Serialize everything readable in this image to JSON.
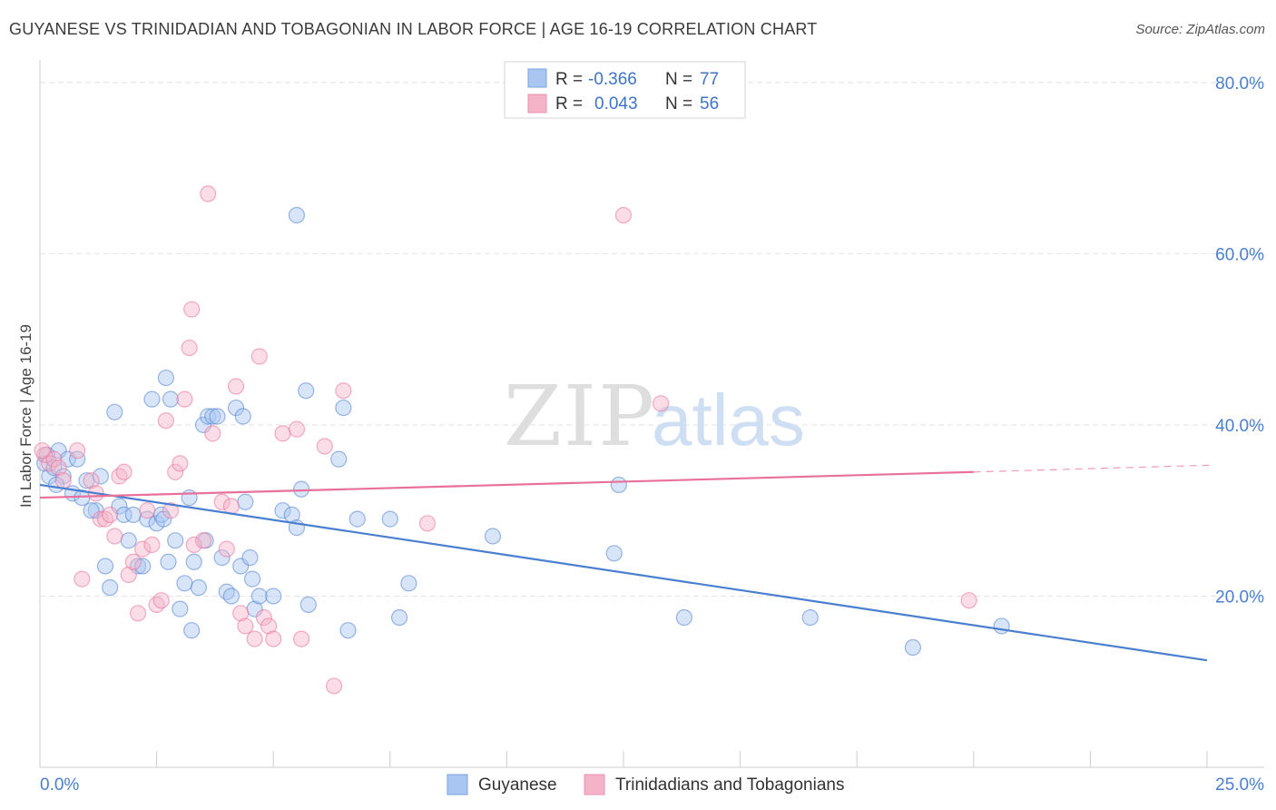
{
  "header": {
    "title": "GUYANESE VS TRINIDADIAN AND TOBAGONIAN IN LABOR FORCE | AGE 16-19 CORRELATION CHART",
    "source": "Source: ZipAtlas.com"
  },
  "watermark": {
    "zip": "ZIP",
    "atlas": "atlas"
  },
  "legend": {
    "rows": [
      {
        "r_label": "R = ",
        "r_value": "-0.366",
        "n_label": "N = ",
        "n_value": "77",
        "color": "#a9c6f2"
      },
      {
        "r_label": "R = ",
        "r_value": "0.043",
        "n_label": "N = ",
        "n_value": "56",
        "color": "#f5b3c8"
      }
    ]
  },
  "bottom_legend": [
    {
      "label": "Guyanese",
      "color": "#a9c6f2"
    },
    {
      "label": "Trinidadians and Tobagonians",
      "color": "#f5b3c8"
    }
  ],
  "chart_data": {
    "type": "scatter",
    "xlabel": "",
    "ylabel": "In Labor Force | Age 16-19",
    "xlim": [
      0,
      25
    ],
    "ylim": [
      0,
      82
    ],
    "x_tick_labels": [
      {
        "value": 0,
        "label": "0.0%"
      },
      {
        "value": 25,
        "label": "25.0%"
      }
    ],
    "y_tick_labels": [
      {
        "value": 20,
        "label": "20.0%"
      },
      {
        "value": 40,
        "label": "40.0%"
      },
      {
        "value": 60,
        "label": "60.0%"
      },
      {
        "value": 80,
        "label": "80.0%"
      }
    ],
    "grid": true,
    "series": [
      {
        "name": "Guyanese",
        "color": "#4a7fd0",
        "fill": "#a9c6f2",
        "trend": {
          "x": [
            0,
            25
          ],
          "y": [
            33.0,
            12.5
          ],
          "dashed_after": null
        },
        "points": [
          [
            0.1,
            35.5
          ],
          [
            0.2,
            34.0
          ],
          [
            0.3,
            35.0
          ],
          [
            0.4,
            37.0
          ],
          [
            0.5,
            34.0
          ],
          [
            0.6,
            36.0
          ],
          [
            0.7,
            32.0
          ],
          [
            0.8,
            36.0
          ],
          [
            1.0,
            33.5
          ],
          [
            1.2,
            30.0
          ],
          [
            1.3,
            34.0
          ],
          [
            1.4,
            23.5
          ],
          [
            1.5,
            21.0
          ],
          [
            1.6,
            41.5
          ],
          [
            1.7,
            30.5
          ],
          [
            1.8,
            29.5
          ],
          [
            1.9,
            26.5
          ],
          [
            2.0,
            29.5
          ],
          [
            2.1,
            23.5
          ],
          [
            2.2,
            23.5
          ],
          [
            2.3,
            29.0
          ],
          [
            2.4,
            43.0
          ],
          [
            2.5,
            28.5
          ],
          [
            2.6,
            29.5
          ],
          [
            2.7,
            45.5
          ],
          [
            2.75,
            24.0
          ],
          [
            2.8,
            43.0
          ],
          [
            2.9,
            26.5
          ],
          [
            3.0,
            18.5
          ],
          [
            3.1,
            21.5
          ],
          [
            3.2,
            31.5
          ],
          [
            3.25,
            16.0
          ],
          [
            3.3,
            24.0
          ],
          [
            3.4,
            21.0
          ],
          [
            3.5,
            40.0
          ],
          [
            3.55,
            26.5
          ],
          [
            3.6,
            41.0
          ],
          [
            3.7,
            41.0
          ],
          [
            3.8,
            41.0
          ],
          [
            3.9,
            24.5
          ],
          [
            4.0,
            20.5
          ],
          [
            4.1,
            20.0
          ],
          [
            4.2,
            42.0
          ],
          [
            4.3,
            23.5
          ],
          [
            4.35,
            41.0
          ],
          [
            4.4,
            31.0
          ],
          [
            4.5,
            24.5
          ],
          [
            4.55,
            22.0
          ],
          [
            4.6,
            18.5
          ],
          [
            4.7,
            20.0
          ],
          [
            5.0,
            20.0
          ],
          [
            5.2,
            30.0
          ],
          [
            5.4,
            29.5
          ],
          [
            5.5,
            28.0
          ],
          [
            5.5,
            64.5
          ],
          [
            5.6,
            32.5
          ],
          [
            5.7,
            44.0
          ],
          [
            5.75,
            19.0
          ],
          [
            6.4,
            36.0
          ],
          [
            6.5,
            42.0
          ],
          [
            6.6,
            16.0
          ],
          [
            6.8,
            29.0
          ],
          [
            7.5,
            29.0
          ],
          [
            7.7,
            17.5
          ],
          [
            7.9,
            21.5
          ],
          [
            9.7,
            27.0
          ],
          [
            12.3,
            25.0
          ],
          [
            12.4,
            33.0
          ],
          [
            13.8,
            17.5
          ],
          [
            16.5,
            17.5
          ],
          [
            18.7,
            14.0
          ],
          [
            20.6,
            16.5
          ],
          [
            0.15,
            36.5
          ],
          [
            0.35,
            33.0
          ],
          [
            0.9,
            31.5
          ],
          [
            1.1,
            30.0
          ],
          [
            2.65,
            29.0
          ]
        ]
      },
      {
        "name": "Trinidadians and Tobagonians",
        "color": "#e8709a",
        "fill": "#f5b3c8",
        "trend": {
          "x": [
            0,
            20
          ],
          "y": [
            31.5,
            34.5
          ],
          "dashed_to": [
            25,
            35.3
          ]
        },
        "points": [
          [
            0.1,
            36.5
          ],
          [
            0.2,
            35.5
          ],
          [
            0.3,
            36.0
          ],
          [
            0.4,
            35.0
          ],
          [
            0.5,
            33.5
          ],
          [
            0.8,
            37.0
          ],
          [
            0.9,
            22.0
          ],
          [
            1.1,
            33.5
          ],
          [
            1.2,
            32.0
          ],
          [
            1.3,
            29.0
          ],
          [
            1.4,
            29.0
          ],
          [
            1.5,
            29.5
          ],
          [
            1.6,
            27.0
          ],
          [
            1.7,
            34.0
          ],
          [
            1.8,
            34.5
          ],
          [
            1.9,
            22.5
          ],
          [
            2.0,
            24.0
          ],
          [
            2.1,
            18.0
          ],
          [
            2.2,
            25.5
          ],
          [
            2.3,
            30.0
          ],
          [
            2.4,
            26.0
          ],
          [
            2.5,
            19.0
          ],
          [
            2.6,
            19.5
          ],
          [
            2.7,
            40.5
          ],
          [
            2.8,
            30.0
          ],
          [
            2.9,
            34.5
          ],
          [
            3.0,
            35.5
          ],
          [
            3.1,
            43.0
          ],
          [
            3.2,
            49.0
          ],
          [
            3.25,
            53.5
          ],
          [
            3.3,
            26.0
          ],
          [
            3.5,
            26.5
          ],
          [
            3.6,
            67.0
          ],
          [
            3.7,
            39.0
          ],
          [
            3.9,
            31.0
          ],
          [
            4.0,
            25.5
          ],
          [
            4.1,
            30.5
          ],
          [
            4.2,
            44.5
          ],
          [
            4.3,
            18.0
          ],
          [
            4.4,
            16.5
          ],
          [
            4.6,
            15.0
          ],
          [
            4.7,
            48.0
          ],
          [
            4.8,
            17.5
          ],
          [
            4.9,
            16.5
          ],
          [
            5.0,
            15.0
          ],
          [
            5.2,
            39.0
          ],
          [
            5.5,
            39.5
          ],
          [
            5.6,
            15.0
          ],
          [
            6.1,
            37.5
          ],
          [
            6.3,
            9.5
          ],
          [
            6.5,
            44.0
          ],
          [
            8.3,
            28.5
          ],
          [
            12.5,
            64.5
          ],
          [
            13.3,
            42.5
          ],
          [
            19.9,
            19.5
          ],
          [
            0.05,
            37.0
          ]
        ]
      }
    ]
  }
}
